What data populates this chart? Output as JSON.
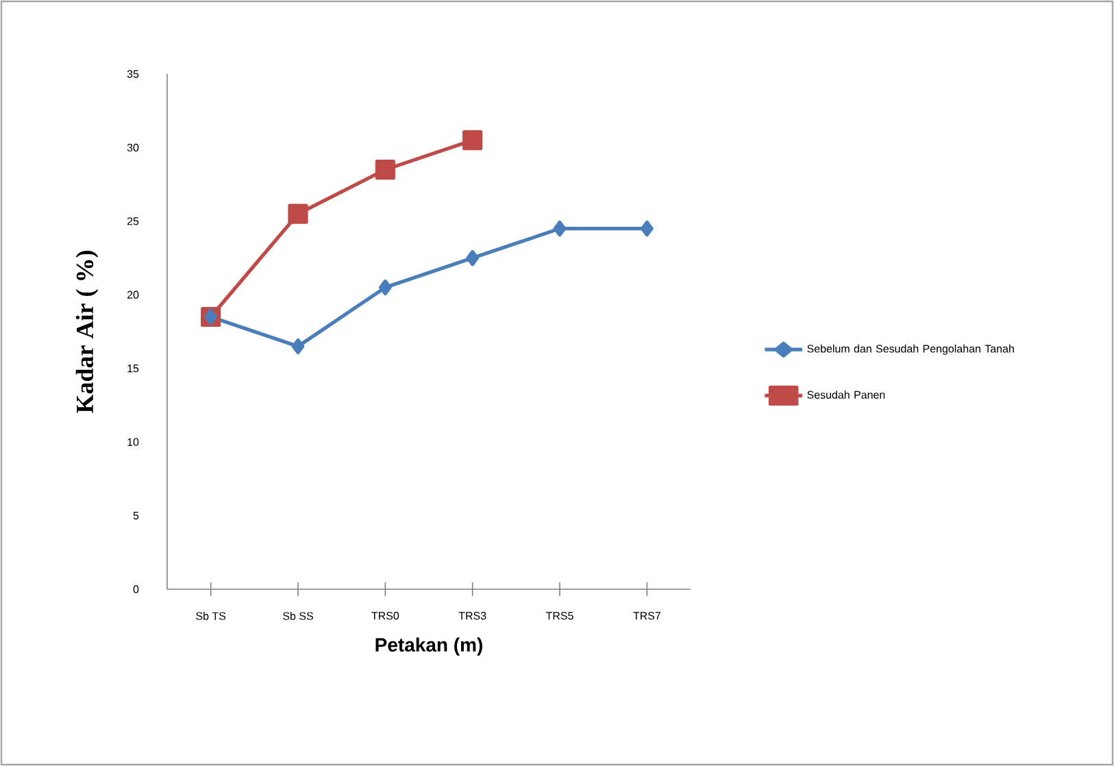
{
  "chart_data": {
    "type": "line",
    "xlabel": "Petakan (m)",
    "ylabel": "Kadar Air ( %)",
    "categories": [
      "Sb TS",
      "Sb SS",
      "TRS0",
      "TRS3",
      "TRS5",
      "TRS7"
    ],
    "series": [
      {
        "name": "Sebelum dan Sesudah Pengolahan Tanah",
        "color": "#4a7ebb",
        "marker": "diamond",
        "values": [
          18.5,
          16.5,
          20.5,
          22.5,
          24.5,
          24.5
        ]
      },
      {
        "name": "Sesudah Panen",
        "color": "#be4b48",
        "marker": "square",
        "values": [
          18.5,
          25.5,
          28.5,
          30.5,
          null,
          null
        ]
      }
    ],
    "ylim": [
      0,
      35
    ],
    "yticks": [
      0,
      5,
      10,
      15,
      20,
      25,
      30,
      35
    ],
    "legend": "right",
    "grid": false,
    "line_style": "solid"
  }
}
